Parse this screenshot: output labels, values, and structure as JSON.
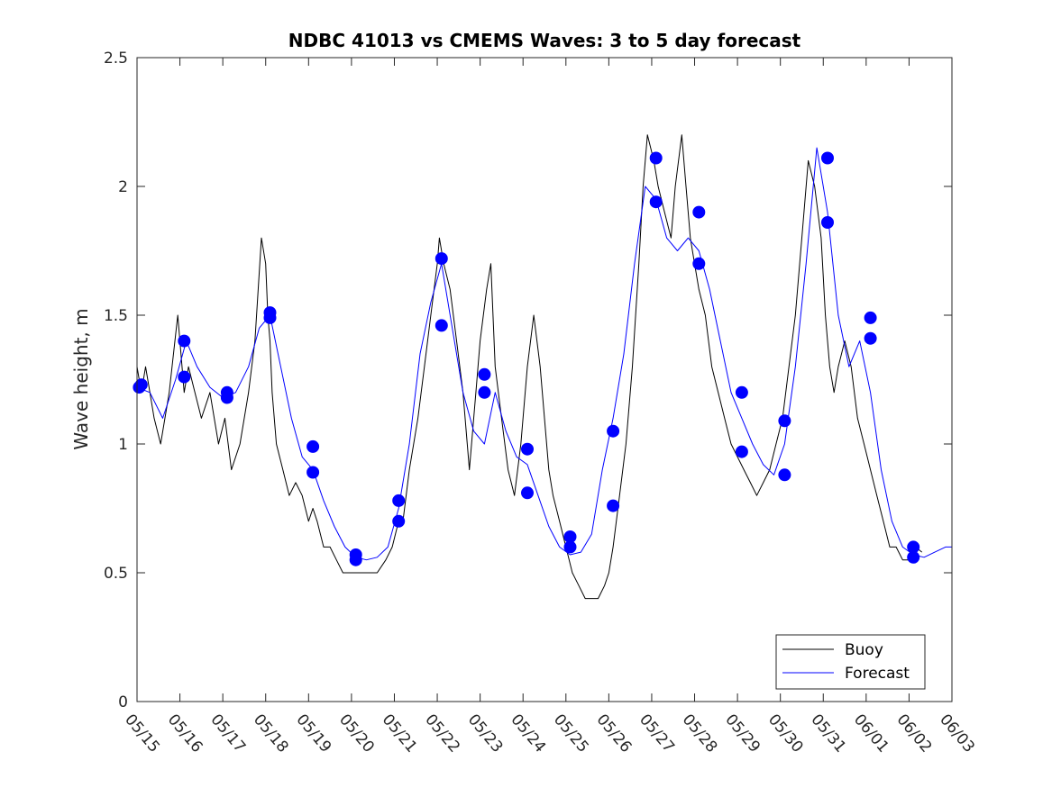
{
  "chart_data": {
    "type": "line",
    "title": "NDBC 41013 vs CMEMS Waves: 3 to 5 day forecast",
    "xlabel": "",
    "ylabel": "Wave height, m",
    "xlim": [
      0,
      19
    ],
    "ylim": [
      0,
      2.5
    ],
    "xtick_labels": [
      "05/15",
      "05/16",
      "05/17",
      "05/18",
      "05/19",
      "05/20",
      "05/21",
      "05/22",
      "05/23",
      "05/24",
      "05/25",
      "05/26",
      "05/27",
      "05/28",
      "05/29",
      "05/30",
      "05/31",
      "06/01",
      "06/02",
      "06/03"
    ],
    "ytick_values": [
      0,
      0.5,
      1,
      1.5,
      2,
      2.5
    ],
    "ytick_labels": [
      "0",
      "0.5",
      "1",
      "1.5",
      "2",
      "2.5"
    ],
    "grid": false,
    "legend": {
      "position": "bottom-right",
      "entries": [
        "Buoy",
        "Forecast"
      ]
    },
    "colors": {
      "buoy": "#000000",
      "forecast": "#0000ff",
      "axes": "#262626"
    },
    "series": [
      {
        "name": "Buoy",
        "color": "#000000",
        "x": [
          0.0,
          0.1,
          0.2,
          0.3,
          0.4,
          0.55,
          0.75,
          0.95,
          1.1,
          1.2,
          1.35,
          1.5,
          1.7,
          1.9,
          2.05,
          2.2,
          2.4,
          2.6,
          2.75,
          2.9,
          3.0,
          3.05,
          3.1,
          3.15,
          3.25,
          3.4,
          3.55,
          3.7,
          3.85,
          4.0,
          4.1,
          4.2,
          4.35,
          4.5,
          4.65,
          4.8,
          5.0,
          5.2,
          5.4,
          5.6,
          5.8,
          5.95,
          6.1,
          6.2,
          6.35,
          6.55,
          6.7,
          6.85,
          7.0,
          7.05,
          7.15,
          7.3,
          7.45,
          7.6,
          7.75,
          7.9,
          8.0,
          8.15,
          8.25,
          8.35,
          8.5,
          8.65,
          8.8,
          8.95,
          9.1,
          9.25,
          9.4,
          9.5,
          9.6,
          9.7,
          9.85,
          10.0,
          10.15,
          10.3,
          10.45,
          10.6,
          10.75,
          10.9,
          11.0,
          11.1,
          11.25,
          11.4,
          11.55,
          11.7,
          11.8,
          11.9,
          12.05,
          12.15,
          12.3,
          12.45,
          12.55,
          12.7,
          12.8,
          12.9,
          13.0,
          13.1,
          13.25,
          13.4,
          13.55,
          13.7,
          13.85,
          14.0,
          14.15,
          14.3,
          14.45,
          14.6,
          14.75,
          14.9,
          15.05,
          15.2,
          15.35,
          15.5,
          15.65,
          15.8,
          15.95,
          16.05,
          16.15,
          16.25,
          16.35,
          16.5,
          16.65,
          16.8,
          16.95,
          17.1,
          17.25,
          17.4,
          17.55,
          17.7,
          17.85,
          18.0,
          18.15,
          18.3
        ],
        "values": [
          1.3,
          1.2,
          1.3,
          1.2,
          1.1,
          1.0,
          1.2,
          1.5,
          1.2,
          1.3,
          1.2,
          1.1,
          1.2,
          1.0,
          1.1,
          0.9,
          1.0,
          1.2,
          1.4,
          1.8,
          1.7,
          1.5,
          1.4,
          1.2,
          1.0,
          0.9,
          0.8,
          0.85,
          0.8,
          0.7,
          0.75,
          0.7,
          0.6,
          0.6,
          0.55,
          0.5,
          0.5,
          0.5,
          0.5,
          0.5,
          0.55,
          0.6,
          0.7,
          0.7,
          0.9,
          1.1,
          1.3,
          1.5,
          1.7,
          1.8,
          1.7,
          1.6,
          1.4,
          1.2,
          0.9,
          1.2,
          1.4,
          1.6,
          1.7,
          1.3,
          1.1,
          0.9,
          0.8,
          1.0,
          1.3,
          1.5,
          1.3,
          1.1,
          0.9,
          0.8,
          0.7,
          0.6,
          0.5,
          0.45,
          0.4,
          0.4,
          0.4,
          0.45,
          0.5,
          0.6,
          0.8,
          1.0,
          1.3,
          1.7,
          2.0,
          2.2,
          2.1,
          2.0,
          1.9,
          1.8,
          2.0,
          2.2,
          2.0,
          1.8,
          1.7,
          1.6,
          1.5,
          1.3,
          1.2,
          1.1,
          1.0,
          0.95,
          0.9,
          0.85,
          0.8,
          0.85,
          0.9,
          1.0,
          1.1,
          1.3,
          1.5,
          1.8,
          2.1,
          2.0,
          1.8,
          1.5,
          1.3,
          1.2,
          1.3,
          1.4,
          1.3,
          1.1,
          1.0,
          0.9,
          0.8,
          0.7,
          0.6,
          0.6,
          0.55,
          0.55,
          0.6,
          0.58
        ]
      },
      {
        "name": "Forecast",
        "color": "#0000ff",
        "x": [
          0.0,
          0.3,
          0.6,
          0.9,
          1.15,
          1.4,
          1.7,
          2.0,
          2.3,
          2.6,
          2.85,
          3.1,
          3.35,
          3.6,
          3.85,
          4.1,
          4.35,
          4.6,
          4.85,
          5.1,
          5.35,
          5.6,
          5.85,
          6.1,
          6.35,
          6.6,
          6.85,
          7.1,
          7.35,
          7.6,
          7.85,
          8.1,
          8.35,
          8.6,
          8.85,
          9.1,
          9.35,
          9.6,
          9.85,
          10.1,
          10.35,
          10.6,
          10.85,
          11.1,
          11.35,
          11.6,
          11.85,
          12.1,
          12.35,
          12.6,
          12.85,
          13.1,
          13.35,
          13.6,
          13.85,
          14.1,
          14.35,
          14.6,
          14.85,
          15.1,
          15.35,
          15.6,
          15.85,
          16.1,
          16.35,
          16.6,
          16.85,
          17.1,
          17.35,
          17.6,
          17.85,
          18.1,
          18.35,
          18.6,
          18.85,
          19.0
        ],
        "values": [
          1.22,
          1.2,
          1.1,
          1.25,
          1.4,
          1.3,
          1.22,
          1.18,
          1.2,
          1.3,
          1.45,
          1.5,
          1.3,
          1.1,
          0.95,
          0.9,
          0.78,
          0.68,
          0.6,
          0.56,
          0.55,
          0.56,
          0.6,
          0.75,
          1.0,
          1.35,
          1.55,
          1.7,
          1.45,
          1.2,
          1.05,
          1.0,
          1.2,
          1.05,
          0.95,
          0.92,
          0.8,
          0.68,
          0.6,
          0.57,
          0.58,
          0.65,
          0.9,
          1.1,
          1.35,
          1.7,
          2.0,
          1.95,
          1.8,
          1.75,
          1.8,
          1.75,
          1.6,
          1.4,
          1.2,
          1.1,
          1.0,
          0.92,
          0.88,
          1.0,
          1.3,
          1.7,
          2.15,
          1.9,
          1.5,
          1.3,
          1.4,
          1.2,
          0.9,
          0.7,
          0.6,
          0.57,
          0.56,
          0.58,
          0.6,
          0.6
        ]
      }
    ],
    "markers": {
      "color": "#0000ff",
      "x": [
        0.05,
        0.1,
        1.1,
        1.1,
        2.1,
        2.1,
        3.1,
        3.1,
        4.1,
        4.1,
        5.1,
        5.1,
        6.1,
        6.1,
        7.1,
        7.1,
        8.1,
        8.1,
        9.1,
        9.1,
        10.1,
        10.1,
        11.1,
        11.1,
        12.1,
        12.1,
        13.1,
        13.1,
        14.1,
        14.1,
        15.1,
        15.1,
        16.1,
        16.1,
        17.1,
        17.1,
        18.1,
        18.1
      ],
      "values": [
        1.22,
        1.23,
        1.4,
        1.26,
        1.2,
        1.18,
        1.51,
        1.49,
        0.99,
        0.89,
        0.57,
        0.55,
        0.78,
        0.7,
        1.72,
        1.46,
        1.27,
        1.2,
        0.98,
        0.81,
        0.64,
        0.6,
        1.05,
        0.76,
        2.11,
        1.94,
        1.9,
        1.7,
        1.2,
        0.97,
        1.09,
        0.88,
        2.11,
        1.86,
        1.49,
        1.41,
        0.6,
        0.56
      ]
    }
  }
}
